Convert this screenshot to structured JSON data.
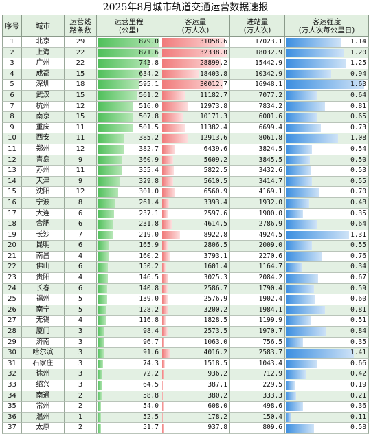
{
  "title": "2025年8月城市轨道交通运营数据速报",
  "chart_data": {
    "type": "table",
    "columns": [
      "序号",
      "城市",
      "运营线路条数",
      "运营里程(公里)",
      "客运量(万人次)",
      "进站量(万人次)",
      "客运强度(万人次每公里日)"
    ],
    "header": {
      "index": "序号",
      "city": "城市",
      "lines": [
        "运营线",
        "路条数"
      ],
      "mileage": [
        "运营里程",
        "(公里)"
      ],
      "ridership": [
        "客运量",
        "(万人次)"
      ],
      "entries": [
        "进站量",
        "(万人次)"
      ],
      "intensity": [
        "客运强度",
        "(万人次每公里日)"
      ]
    },
    "axis_max": {
      "mileage": 900,
      "ridership": 33000,
      "intensity": 1.7
    },
    "colors": {
      "header_bg": "#e1efe0",
      "row_alt": "#e3f0e3",
      "mileage_bar": "#4fbf5a",
      "ridership_bar": "#f07a7a",
      "intensity_bar": "#3b8ee0"
    },
    "rows": [
      {
        "idx": "1",
        "city": "北京",
        "lines": "29",
        "mileage": "879.0",
        "ridership": "31058.6",
        "entries": "17023.1",
        "intensity": "1.14"
      },
      {
        "idx": "2",
        "city": "上海",
        "lines": "22",
        "mileage": "871.6",
        "ridership": "32338.0",
        "entries": "18032.9",
        "intensity": "1.20"
      },
      {
        "idx": "3",
        "city": "广州",
        "lines": "22",
        "mileage": "743.8",
        "ridership": "28899.2",
        "entries": "15442.9",
        "intensity": "1.25"
      },
      {
        "idx": "4",
        "city": "成都",
        "lines": "15",
        "mileage": "634.2",
        "ridership": "18403.8",
        "entries": "10342.9",
        "intensity": "0.94"
      },
      {
        "idx": "5",
        "city": "深圳",
        "lines": "18",
        "mileage": "595.1",
        "ridership": "30012.7",
        "entries": "16948.1",
        "intensity": "1.63"
      },
      {
        "idx": "6",
        "city": "武汉",
        "lines": "15",
        "mileage": "561.2",
        "ridership": "11182.7",
        "entries": "7077.2",
        "intensity": "0.64"
      },
      {
        "idx": "7",
        "city": "杭州",
        "lines": "12",
        "mileage": "516.0",
        "ridership": "12973.8",
        "entries": "7834.2",
        "intensity": "0.81"
      },
      {
        "idx": "8",
        "city": "南京",
        "lines": "15",
        "mileage": "507.8",
        "ridership": "10171.3",
        "entries": "6001.6",
        "intensity": "0.65"
      },
      {
        "idx": "9",
        "city": "重庆",
        "lines": "11",
        "mileage": "501.5",
        "ridership": "11382.4",
        "entries": "6699.4",
        "intensity": "0.73"
      },
      {
        "idx": "10",
        "city": "西安",
        "lines": "11",
        "mileage": "385.2",
        "ridership": "12913.6",
        "entries": "8061.8",
        "intensity": "1.08"
      },
      {
        "idx": "11",
        "city": "郑州",
        "lines": "12",
        "mileage": "382.7",
        "ridership": "6439.6",
        "entries": "3824.5",
        "intensity": "0.54"
      },
      {
        "idx": "12",
        "city": "青岛",
        "lines": "9",
        "mileage": "360.9",
        "ridership": "5609.2",
        "entries": "3845.5",
        "intensity": "0.50"
      },
      {
        "idx": "13",
        "city": "苏州",
        "lines": "11",
        "mileage": "355.4",
        "ridership": "5822.5",
        "entries": "3432.6",
        "intensity": "0.53"
      },
      {
        "idx": "14",
        "city": "天津",
        "lines": "9",
        "mileage": "329.8",
        "ridership": "5610.5",
        "entries": "3414.7",
        "intensity": "0.55"
      },
      {
        "idx": "15",
        "city": "沈阳",
        "lines": "12",
        "mileage": "301.0",
        "ridership": "6560.9",
        "entries": "4169.1",
        "intensity": "0.70"
      },
      {
        "idx": "16",
        "city": "宁波",
        "lines": "8",
        "mileage": "261.4",
        "ridership": "3393.4",
        "entries": "1932.0",
        "intensity": "0.48"
      },
      {
        "idx": "17",
        "city": "大连",
        "lines": "6",
        "mileage": "237.1",
        "ridership": "2597.6",
        "entries": "1900.0",
        "intensity": "0.35"
      },
      {
        "idx": "18",
        "city": "合肥",
        "lines": "6",
        "mileage": "231.8",
        "ridership": "4614.5",
        "entries": "2786.9",
        "intensity": "0.64"
      },
      {
        "idx": "19",
        "city": "长沙",
        "lines": "7",
        "mileage": "219.0",
        "ridership": "8922.8",
        "entries": "4924.5",
        "intensity": "1.31"
      },
      {
        "idx": "20",
        "city": "昆明",
        "lines": "6",
        "mileage": "165.9",
        "ridership": "2806.5",
        "entries": "2009.0",
        "intensity": "0.55"
      },
      {
        "idx": "21",
        "city": "南昌",
        "lines": "4",
        "mileage": "160.2",
        "ridership": "3793.1",
        "entries": "2270.6",
        "intensity": "0.76"
      },
      {
        "idx": "22",
        "city": "佛山",
        "lines": "6",
        "mileage": "150.2",
        "ridership": "1601.4",
        "entries": "1164.7",
        "intensity": "0.34"
      },
      {
        "idx": "23",
        "city": "贵阳",
        "lines": "4",
        "mileage": "146.5",
        "ridership": "3025.3",
        "entries": "2084.2",
        "intensity": "0.67"
      },
      {
        "idx": "24",
        "city": "长春",
        "lines": "6",
        "mileage": "140.8",
        "ridership": "2586.7",
        "entries": "1790.4",
        "intensity": "0.59"
      },
      {
        "idx": "25",
        "city": "福州",
        "lines": "5",
        "mileage": "139.0",
        "ridership": "2576.9",
        "entries": "1902.4",
        "intensity": "0.60"
      },
      {
        "idx": "26",
        "city": "南宁",
        "lines": "5",
        "mileage": "128.2",
        "ridership": "3200.2",
        "entries": "1984.1",
        "intensity": "0.81"
      },
      {
        "idx": "27",
        "city": "无锡",
        "lines": "4",
        "mileage": "116.8",
        "ridership": "1828.5",
        "entries": "1199.9",
        "intensity": "0.51"
      },
      {
        "idx": "28",
        "city": "厦门",
        "lines": "3",
        "mileage": "98.4",
        "ridership": "2573.5",
        "entries": "1970.7",
        "intensity": "0.84"
      },
      {
        "idx": "29",
        "city": "济南",
        "lines": "3",
        "mileage": "96.7",
        "ridership": "1063.0",
        "entries": "756.5",
        "intensity": "0.35"
      },
      {
        "idx": "30",
        "city": "哈尔滨",
        "lines": "3",
        "mileage": "91.6",
        "ridership": "4016.2",
        "entries": "2583.7",
        "intensity": "1.41"
      },
      {
        "idx": "31",
        "city": "石家庄",
        "lines": "3",
        "mileage": "74.3",
        "ridership": "1518.5",
        "entries": "1043.4",
        "intensity": "0.66"
      },
      {
        "idx": "32",
        "city": "徐州",
        "lines": "3",
        "mileage": "72.2",
        "ridership": "936.2",
        "entries": "712.9",
        "intensity": "0.42"
      },
      {
        "idx": "33",
        "city": "绍兴",
        "lines": "3",
        "mileage": "64.5",
        "ridership": "387.1",
        "entries": "229.5",
        "intensity": "0.19"
      },
      {
        "idx": "34",
        "city": "南通",
        "lines": "2",
        "mileage": "58.8",
        "ridership": "380.2",
        "entries": "333.3",
        "intensity": "0.21"
      },
      {
        "idx": "35",
        "city": "常州",
        "lines": "2",
        "mileage": "54.0",
        "ridership": "608.0",
        "entries": "498.6",
        "intensity": "0.36"
      },
      {
        "idx": "36",
        "city": "温州",
        "lines": "1",
        "mileage": "52.5",
        "ridership": "178.2",
        "entries": "150.4",
        "intensity": "0.11"
      },
      {
        "idx": "37",
        "city": "太原",
        "lines": "2",
        "mileage": "51.7",
        "ridership": "937.8",
        "entries": "809.6",
        "intensity": "0.58"
      }
    ]
  }
}
